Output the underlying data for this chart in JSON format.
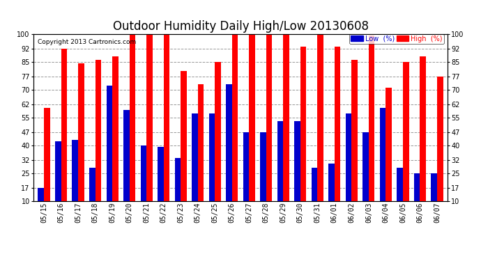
{
  "title": "Outdoor Humidity Daily High/Low 20130608",
  "copyright": "Copyright 2013 Cartronics.com",
  "categories": [
    "05/15",
    "05/16",
    "05/17",
    "05/18",
    "05/19",
    "05/20",
    "05/21",
    "05/22",
    "05/23",
    "05/24",
    "05/25",
    "05/26",
    "05/27",
    "05/28",
    "05/29",
    "05/30",
    "05/31",
    "06/01",
    "06/02",
    "06/03",
    "06/04",
    "06/05",
    "06/06",
    "06/07"
  ],
  "high": [
    60,
    92,
    84,
    86,
    88,
    100,
    100,
    100,
    80,
    73,
    85,
    100,
    100,
    100,
    100,
    93,
    100,
    93,
    86,
    99,
    71,
    85,
    88,
    77
  ],
  "low": [
    17,
    42,
    43,
    28,
    72,
    59,
    40,
    39,
    33,
    57,
    57,
    73,
    47,
    47,
    53,
    53,
    28,
    30,
    57,
    47,
    60,
    28,
    25,
    25
  ],
  "high_color": "#ff0000",
  "low_color": "#0000cc",
  "bg_color": "#ffffff",
  "grid_color": "#999999",
  "ylim": [
    10,
    100
  ],
  "yticks": [
    10,
    17,
    25,
    32,
    40,
    47,
    55,
    62,
    70,
    77,
    85,
    92,
    100
  ],
  "bar_width": 0.35,
  "legend_low_label": "Low  (%)",
  "legend_high_label": "High  (%)",
  "title_fontsize": 12,
  "tick_fontsize": 7,
  "copyright_fontsize": 6.5
}
